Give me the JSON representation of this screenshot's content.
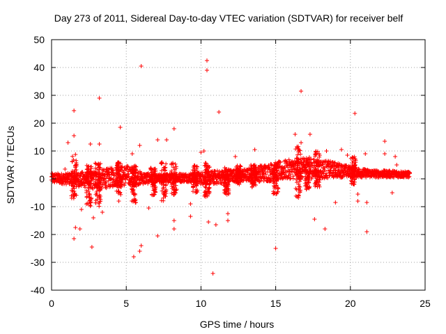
{
  "chart_data": {
    "type": "scatter",
    "title": "Day 273 of 2011, Sidereal Day-to-day VTEC variation (SDTVAR) for receiver belf",
    "xlabel": "GPS time / hours",
    "ylabel": "SDTVAR / TECUs",
    "xlim": [
      0,
      25
    ],
    "ylim": [
      -40,
      50
    ],
    "xticks": [
      0,
      5,
      10,
      15,
      20,
      25
    ],
    "yticks": [
      -40,
      -30,
      -20,
      -10,
      0,
      10,
      20,
      30,
      40,
      50
    ],
    "grid": true,
    "marker": "+",
    "color": "#ff0000",
    "band": {
      "description": "dense central band of SDTVAR values",
      "samples": [
        {
          "x": 0.0,
          "lo": -1.5,
          "hi": 2.0
        },
        {
          "x": 1.0,
          "lo": -2.0,
          "hi": 2.0
        },
        {
          "x": 2.0,
          "lo": -3.0,
          "hi": 2.5
        },
        {
          "x": 3.0,
          "lo": -4.0,
          "hi": 3.0
        },
        {
          "x": 4.0,
          "lo": -3.0,
          "hi": 4.0
        },
        {
          "x": 5.0,
          "lo": -2.5,
          "hi": 5.0
        },
        {
          "x": 6.0,
          "lo": -2.0,
          "hi": 2.5
        },
        {
          "x": 7.0,
          "lo": -1.5,
          "hi": 1.5
        },
        {
          "x": 8.0,
          "lo": -1.5,
          "hi": 2.0
        },
        {
          "x": 9.0,
          "lo": -1.0,
          "hi": 2.0
        },
        {
          "x": 10.0,
          "lo": -2.0,
          "hi": 2.5
        },
        {
          "x": 11.0,
          "lo": -2.0,
          "hi": 3.0
        },
        {
          "x": 12.0,
          "lo": -1.0,
          "hi": 3.5
        },
        {
          "x": 13.0,
          "lo": -1.0,
          "hi": 3.5
        },
        {
          "x": 14.0,
          "lo": -1.0,
          "hi": 5.0
        },
        {
          "x": 15.0,
          "lo": -1.0,
          "hi": 6.0
        },
        {
          "x": 16.0,
          "lo": 0.0,
          "hi": 7.0
        },
        {
          "x": 17.0,
          "lo": 0.0,
          "hi": 7.5
        },
        {
          "x": 18.0,
          "lo": 0.0,
          "hi": 7.0
        },
        {
          "x": 19.0,
          "lo": 0.5,
          "hi": 6.0
        },
        {
          "x": 20.0,
          "lo": 0.5,
          "hi": 4.5
        },
        {
          "x": 21.0,
          "lo": 0.5,
          "hi": 3.5
        },
        {
          "x": 22.0,
          "lo": 0.5,
          "hi": 3.0
        },
        {
          "x": 23.0,
          "lo": 0.5,
          "hi": 3.0
        },
        {
          "x": 24.0,
          "lo": 0.5,
          "hi": 2.5
        }
      ]
    },
    "spikes": [
      {
        "x": 1.5,
        "lo": -7.0,
        "hi": 9.0
      },
      {
        "x": 2.5,
        "lo": -10.0,
        "hi": 5.0
      },
      {
        "x": 3.1,
        "lo": -10.0,
        "hi": 6.0
      },
      {
        "x": 4.5,
        "lo": -6.0,
        "hi": 6.0
      },
      {
        "x": 5.5,
        "lo": -9.0,
        "hi": 5.0
      },
      {
        "x": 6.8,
        "lo": -6.0,
        "hi": 4.0
      },
      {
        "x": 7.5,
        "lo": -8.0,
        "hi": 6.0
      },
      {
        "x": 8.2,
        "lo": -6.0,
        "hi": 6.0
      },
      {
        "x": 9.6,
        "lo": -5.0,
        "hi": 5.0
      },
      {
        "x": 10.4,
        "lo": -7.0,
        "hi": 6.0
      },
      {
        "x": 11.7,
        "lo": -6.0,
        "hi": 4.0
      },
      {
        "x": 12.5,
        "lo": -2.0,
        "hi": 5.0
      },
      {
        "x": 13.5,
        "lo": -3.0,
        "hi": 5.0
      },
      {
        "x": 15.0,
        "lo": -6.0,
        "hi": 5.0
      },
      {
        "x": 16.5,
        "lo": -7.0,
        "hi": 12.0
      },
      {
        "x": 17.1,
        "lo": -4.0,
        "hi": 8.0
      },
      {
        "x": 17.8,
        "lo": -3.0,
        "hi": 10.0
      },
      {
        "x": 20.2,
        "lo": -2.0,
        "hi": 8.0
      }
    ],
    "outliers": [
      {
        "x": 1.1,
        "y": 13.0
      },
      {
        "x": 1.5,
        "y": 24.5
      },
      {
        "x": 1.5,
        "y": 15.5
      },
      {
        "x": 1.6,
        "y": -17.5
      },
      {
        "x": 1.5,
        "y": -21.5
      },
      {
        "x": 1.9,
        "y": -18.0
      },
      {
        "x": 2.6,
        "y": 12.5
      },
      {
        "x": 2.7,
        "y": -24.5
      },
      {
        "x": 2.8,
        "y": -14.0
      },
      {
        "x": 3.2,
        "y": 29.0
      },
      {
        "x": 3.2,
        "y": 12.5
      },
      {
        "x": 3.4,
        "y": -12.0
      },
      {
        "x": 4.6,
        "y": 18.5
      },
      {
        "x": 5.5,
        "y": -28.0
      },
      {
        "x": 5.9,
        "y": -26.0
      },
      {
        "x": 6.0,
        "y": -24.0
      },
      {
        "x": 6.0,
        "y": 40.5
      },
      {
        "x": 5.9,
        "y": 12.0
      },
      {
        "x": 5.4,
        "y": 9.0
      },
      {
        "x": 7.1,
        "y": -20.5
      },
      {
        "x": 7.1,
        "y": 14.0
      },
      {
        "x": 7.7,
        "y": 14.0
      },
      {
        "x": 8.2,
        "y": 18.0
      },
      {
        "x": 8.2,
        "y": -18.0
      },
      {
        "x": 8.2,
        "y": -15.0
      },
      {
        "x": 9.3,
        "y": -13.5
      },
      {
        "x": 9.3,
        "y": -9.0
      },
      {
        "x": 10.4,
        "y": 42.5
      },
      {
        "x": 10.4,
        "y": 39.0
      },
      {
        "x": 10.5,
        "y": -15.5
      },
      {
        "x": 10.8,
        "y": -34.0
      },
      {
        "x": 11.0,
        "y": -16.5
      },
      {
        "x": 11.2,
        "y": 24.0
      },
      {
        "x": 10.0,
        "y": 9.5
      },
      {
        "x": 10.2,
        "y": 10.0
      },
      {
        "x": 11.8,
        "y": -15.0
      },
      {
        "x": 11.8,
        "y": -12.5
      },
      {
        "x": 13.6,
        "y": 10.5
      },
      {
        "x": 15.0,
        "y": -25.0
      },
      {
        "x": 16.3,
        "y": 16.0
      },
      {
        "x": 16.7,
        "y": 31.5
      },
      {
        "x": 16.7,
        "y": 13.0
      },
      {
        "x": 17.3,
        "y": 16.0
      },
      {
        "x": 17.6,
        "y": -14.5
      },
      {
        "x": 18.3,
        "y": -18.0
      },
      {
        "x": 18.4,
        "y": 10.0
      },
      {
        "x": 19.0,
        "y": -8.5
      },
      {
        "x": 19.4,
        "y": 10.5
      },
      {
        "x": 20.3,
        "y": 23.5
      },
      {
        "x": 20.5,
        "y": -5.5
      },
      {
        "x": 20.5,
        "y": -8.0
      },
      {
        "x": 21.1,
        "y": -19.0
      },
      {
        "x": 21.1,
        "y": -8.5
      },
      {
        "x": 21.0,
        "y": 9.0
      },
      {
        "x": 22.3,
        "y": 13.5
      },
      {
        "x": 22.3,
        "y": 9.0
      },
      {
        "x": 22.8,
        "y": -5.0
      },
      {
        "x": 23.1,
        "y": 5.0
      },
      {
        "x": 23.0,
        "y": 8.0
      },
      {
        "x": 0.9,
        "y": 3.5
      },
      {
        "x": 2.0,
        "y": -11.0
      },
      {
        "x": 4.5,
        "y": -8.0
      },
      {
        "x": 6.5,
        "y": -10.5
      },
      {
        "x": 12.3,
        "y": 8.0
      },
      {
        "x": 19.8,
        "y": 8.5
      }
    ]
  }
}
